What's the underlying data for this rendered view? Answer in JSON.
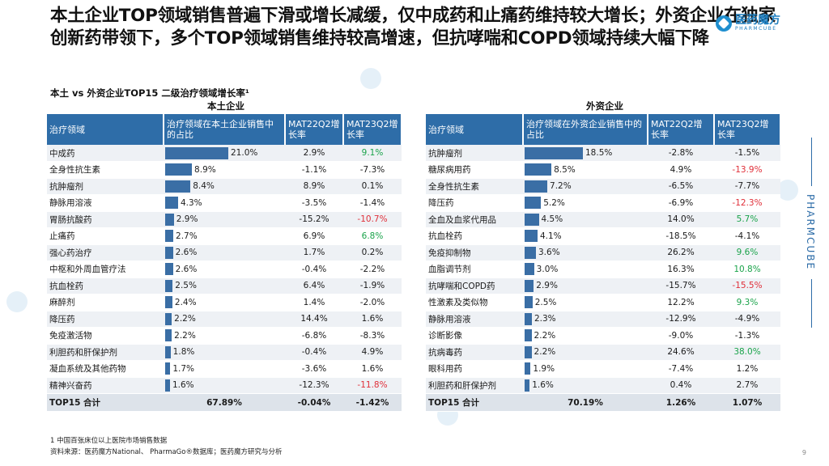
{
  "title": "本土企业TOP领域销售普遍下滑或增长减缓，仅中成药和止痛药维持较大增长；外资企业在独家创新药带领下，多个TOP领域销售维持较高增速，但抗哮喘和COPD领域持续大幅下降",
  "logo": {
    "cn": "医药魔方",
    "en": "PHARMCUBE"
  },
  "subtitle": "本土 vs 外资企业TOP15 二级治疗领域增长率¹",
  "side_label": "PHARMCUBE",
  "colors": {
    "header_bg": "#2e6da8",
    "bar": "#3a6ea5",
    "positive": "#1aa34a",
    "negative": "#e0303a"
  },
  "domestic": {
    "title": "本土企业",
    "headers": [
      "治疗领域",
      "治疗领域在本土企业销售中的占比",
      "MAT22Q2增长率",
      "MAT23Q2增长率"
    ],
    "rows": [
      {
        "area": "中成药",
        "share": "21.0%",
        "share_value": 21.0,
        "g22": "2.9%",
        "g23": "9.1%",
        "g23_color": "pos"
      },
      {
        "area": "全身性抗生素",
        "share": "8.9%",
        "share_value": 8.9,
        "g22": "-1.1%",
        "g23": "-7.3%",
        "g23_color": ""
      },
      {
        "area": "抗肿瘤剂",
        "share": "8.4%",
        "share_value": 8.4,
        "g22": "8.9%",
        "g23": "0.1%",
        "g23_color": ""
      },
      {
        "area": "静脉用溶液",
        "share": "4.3%",
        "share_value": 4.3,
        "g22": "-3.5%",
        "g23": "-1.4%",
        "g23_color": ""
      },
      {
        "area": "胃肠抗酸药",
        "share": "2.9%",
        "share_value": 2.9,
        "g22": "-15.2%",
        "g23": "-10.7%",
        "g23_color": "neg"
      },
      {
        "area": "止痛药",
        "share": "2.7%",
        "share_value": 2.7,
        "g22": "6.9%",
        "g23": "6.8%",
        "g23_color": "pos"
      },
      {
        "area": "强心药治疗",
        "share": "2.6%",
        "share_value": 2.6,
        "g22": "1.7%",
        "g23": "0.2%",
        "g23_color": ""
      },
      {
        "area": "中枢和外周血管疗法",
        "share": "2.6%",
        "share_value": 2.6,
        "g22": "-0.4%",
        "g23": "-2.2%",
        "g23_color": ""
      },
      {
        "area": "抗血栓药",
        "share": "2.5%",
        "share_value": 2.5,
        "g22": "6.4%",
        "g23": "-1.9%",
        "g23_color": ""
      },
      {
        "area": "麻醉剂",
        "share": "2.4%",
        "share_value": 2.4,
        "g22": "1.4%",
        "g23": "-2.0%",
        "g23_color": ""
      },
      {
        "area": "降压药",
        "share": "2.2%",
        "share_value": 2.2,
        "g22": "14.4%",
        "g23": "1.6%",
        "g23_color": ""
      },
      {
        "area": "免疫激活物",
        "share": "2.2%",
        "share_value": 2.2,
        "g22": "-6.8%",
        "g23": "-8.3%",
        "g23_color": ""
      },
      {
        "area": "利胆药和肝保护剂",
        "share": "1.8%",
        "share_value": 1.8,
        "g22": "-0.4%",
        "g23": "4.9%",
        "g23_color": ""
      },
      {
        "area": "凝血系统及其他药物",
        "share": "1.7%",
        "share_value": 1.7,
        "g22": "-3.6%",
        "g23": "1.6%",
        "g23_color": ""
      },
      {
        "area": "精神兴奋药",
        "share": "1.6%",
        "share_value": 1.6,
        "g22": "-12.3%",
        "g23": "-11.8%",
        "g23_color": "neg"
      }
    ],
    "total": {
      "label": "TOP15 合计",
      "share": "67.89%",
      "g22": "-0.04%",
      "g23": "-1.42%"
    }
  },
  "foreign": {
    "title": "外资企业",
    "headers": [
      "治疗领域",
      "治疗领域在外资企业销售中的占比",
      "MAT22Q2增长率",
      "MAT23Q2增长率"
    ],
    "rows": [
      {
        "area": "抗肿瘤剂",
        "share": "18.5%",
        "share_value": 18.5,
        "g22": "-2.8%",
        "g23": "-1.5%",
        "g23_color": ""
      },
      {
        "area": "糖尿病用药",
        "share": "8.5%",
        "share_value": 8.5,
        "g22": "4.9%",
        "g23": "-13.9%",
        "g23_color": "neg"
      },
      {
        "area": "全身性抗生素",
        "share": "7.2%",
        "share_value": 7.2,
        "g22": "-6.5%",
        "g23": "-7.7%",
        "g23_color": ""
      },
      {
        "area": "降压药",
        "share": "5.2%",
        "share_value": 5.2,
        "g22": "-6.9%",
        "g23": "-12.3%",
        "g23_color": "neg"
      },
      {
        "area": "全血及血浆代用品",
        "share": "4.5%",
        "share_value": 4.5,
        "g22": "14.0%",
        "g23": "5.7%",
        "g23_color": "pos"
      },
      {
        "area": "抗血栓药",
        "share": "4.1%",
        "share_value": 4.1,
        "g22": "-18.5%",
        "g23": "-4.1%",
        "g23_color": ""
      },
      {
        "area": "免疫抑制物",
        "share": "3.6%",
        "share_value": 3.6,
        "g22": "26.2%",
        "g23": "9.6%",
        "g23_color": "pos"
      },
      {
        "area": "血脂调节剂",
        "share": "3.0%",
        "share_value": 3.0,
        "g22": "16.3%",
        "g23": "10.8%",
        "g23_color": "pos"
      },
      {
        "area": "抗哮喘和COPD药",
        "share": "2.9%",
        "share_value": 2.9,
        "g22": "-15.7%",
        "g23": "-15.5%",
        "g23_color": "neg"
      },
      {
        "area": "性激素及类似物",
        "share": "2.5%",
        "share_value": 2.5,
        "g22": "12.2%",
        "g23": "9.3%",
        "g23_color": "pos"
      },
      {
        "area": "静脉用溶液",
        "share": "2.3%",
        "share_value": 2.3,
        "g22": "-12.9%",
        "g23": "-4.9%",
        "g23_color": ""
      },
      {
        "area": "诊断影像",
        "share": "2.2%",
        "share_value": 2.2,
        "g22": "-9.0%",
        "g23": "-1.3%",
        "g23_color": ""
      },
      {
        "area": "抗病毒药",
        "share": "2.2%",
        "share_value": 2.2,
        "g22": "24.6%",
        "g23": "38.0%",
        "g23_color": "pos"
      },
      {
        "area": "眼科用药",
        "share": "1.9%",
        "share_value": 1.9,
        "g22": "-7.4%",
        "g23": "1.2%",
        "g23_color": ""
      },
      {
        "area": "利胆药和肝保护剂",
        "share": "1.6%",
        "share_value": 1.6,
        "g22": "0.4%",
        "g23": "2.7%",
        "g23_color": ""
      }
    ],
    "total": {
      "label": "TOP15 合计",
      "share": "70.19%",
      "g22": "1.26%",
      "g23": "1.07%"
    }
  },
  "footnote": "1 中国百张床位以上医院市场销售数据",
  "source": "资料来源：医药魔方National、 PharmaGo®数据库；医药魔方研究与分析",
  "page_number": "9"
}
